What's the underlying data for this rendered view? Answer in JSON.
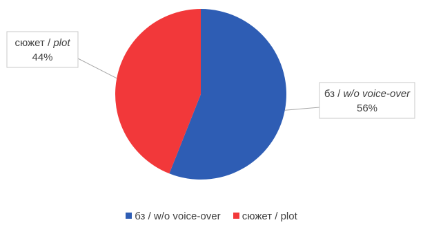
{
  "colors": {
    "series_0": "#2E5DB4",
    "series_1": "#F2383A",
    "callout_border": "#c8c8c8",
    "leader_line": "#a6a6a6"
  },
  "chart_data": {
    "type": "pie",
    "title": "",
    "legend_position": "bottom",
    "slices": [
      {
        "name": "бз / w/o voice-over",
        "label_name": "бз / ",
        "label_name_italic": "w/o voice-over",
        "value": 56,
        "label": "56%",
        "color": "#2E5DB4"
      },
      {
        "name": "сюжет / plot",
        "label_name": "сюжет / ",
        "label_name_italic": "plot",
        "value": 44,
        "label": "44%",
        "color": "#F2383A"
      }
    ]
  }
}
